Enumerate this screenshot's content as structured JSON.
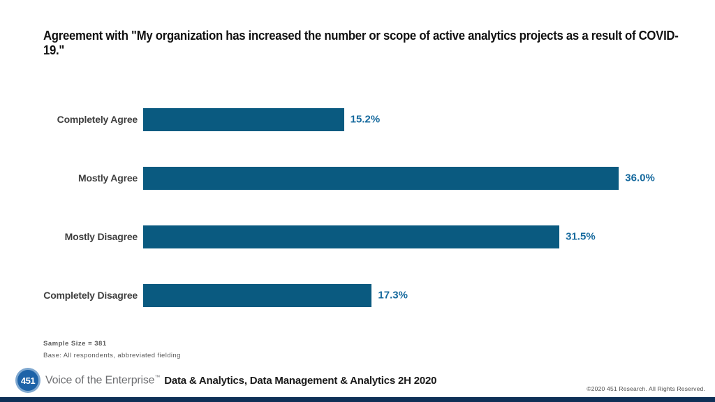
{
  "chart_data": {
    "type": "bar",
    "orientation": "horizontal",
    "title": "Agreement with \"My organization has increased the number or scope of active analytics projects as a result of COVID-19.\"",
    "categories": [
      "Completely Agree",
      "Mostly Agree",
      "Mostly Disagree",
      "Completely Disagree"
    ],
    "values": [
      15.2,
      36.0,
      31.5,
      17.3
    ],
    "value_labels": [
      "15.2%",
      "36.0%",
      "31.5%",
      "17.3%"
    ],
    "xlim": [
      0,
      40
    ],
    "grid": false,
    "legend": false,
    "bar_color": "#0a5a80",
    "value_label_color": "#176a9e"
  },
  "notes": {
    "sample_size": "Sample Size = 381",
    "base": "Base: All respondents, abbreviated fielding"
  },
  "footer": {
    "logo_text": "451",
    "brand": "Voice of the Enterprise",
    "trademark": "™",
    "product": "Data & Analytics, Data Management & Analytics 2H 2020",
    "copyright": "©2020  451 Research.  All Rights Reserved.",
    "bar_color": "#0e3057",
    "logo_inner_color": "#1d63a8",
    "logo_ring_color": "#7fa8d0"
  }
}
